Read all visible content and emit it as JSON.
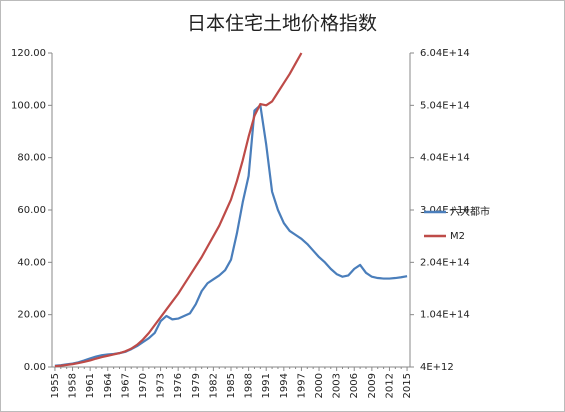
{
  "chart_data": {
    "type": "line",
    "title": "日本住宅土地价格指数",
    "categories": [
      "1955",
      null,
      null,
      "1958",
      null,
      null,
      "1961",
      null,
      null,
      "1964",
      null,
      null,
      "1967",
      null,
      null,
      "1970",
      null,
      null,
      "1973",
      null,
      null,
      "1976",
      null,
      null,
      "1979",
      null,
      null,
      "1982",
      null,
      null,
      "1985",
      null,
      null,
      "1988",
      null,
      null,
      "1991",
      null,
      null,
      "1994",
      null,
      null,
      "1997",
      null,
      null,
      "2000",
      null,
      null,
      "2003",
      null,
      null,
      "2006",
      null,
      null,
      "2009",
      null,
      null,
      "2012",
      null,
      null,
      "2015"
    ],
    "series": [
      {
        "name": "六大都市",
        "color": "#4a7ebb",
        "values": [
          0.5,
          0.7,
          1.0,
          1.3,
          1.8,
          2.5,
          3.3,
          4.0,
          4.5,
          4.8,
          5.0,
          5.3,
          5.8,
          6.8,
          8.0,
          9.5,
          11,
          13,
          17.5,
          19.5,
          18.2,
          18.5,
          19.5,
          20.5,
          24,
          29,
          32,
          33.5,
          35,
          37,
          41,
          51,
          63,
          73,
          98,
          100,
          85,
          67,
          60,
          55,
          52,
          50.5,
          49,
          47,
          44.5,
          42,
          40,
          37.5,
          35.5,
          34.5,
          35,
          37.5,
          39,
          36,
          34.5,
          34,
          33.8,
          33.8,
          34,
          34.3,
          34.7
        ]
      },
      {
        "name": "M2",
        "color": "#be4b48",
        "axis": "y2",
        "values": [
          5500000000000.0,
          6500000000000.0,
          8000000000000.0,
          9500000000000.0,
          11500000000000.0,
          14000000000000.0,
          16500000000000.0,
          20000000000000.0,
          23000000000000.0,
          25500000000000.0,
          28000000000000.0,
          30500000000000.0,
          34000000000000.0,
          39000000000000.0,
          46500000000000.0,
          56500000000000.0,
          69000000000000.0,
          84000000000000.0,
          99000000000000.0,
          114000000000000.0,
          129000000000000.0,
          144000000000000.0,
          161500000000000.0,
          179000000000000.0,
          196500000000000.0,
          214000000000000.0,
          234000000000000.0,
          254000000000000.0,
          274000000000000.0,
          299000000000000.0,
          324000000000000.0,
          359000000000000.0,
          399000000000000.0,
          444000000000000.0,
          484000000000000.0,
          506500000000000.0,
          504000000000000.0,
          511500000000000.0,
          529000000000000.0,
          546500000000000.0,
          564000000000000.0,
          584000000000000.0,
          604000000000000.0,
          null,
          null,
          null,
          null,
          null,
          null,
          null,
          null,
          null,
          null,
          null,
          null,
          null,
          null,
          null,
          null,
          null,
          null
        ]
      }
    ],
    "ylim": [
      0,
      120
    ],
    "yticks": [
      {
        "value": 0,
        "label": "0.00"
      },
      {
        "value": 20,
        "label": "20.00"
      },
      {
        "value": 40,
        "label": "40.00"
      },
      {
        "value": 60,
        "label": "60.00"
      },
      {
        "value": 80,
        "label": "80.00"
      },
      {
        "value": 100,
        "label": "100.00"
      },
      {
        "value": 120,
        "label": "120.00"
      }
    ],
    "y2lim": [
      4000000000000.0,
      604000000000000.0
    ],
    "y2ticks": [
      {
        "value": 4000000000000.0,
        "label": "4E+12"
      },
      {
        "value": 104000000000000.0,
        "label": "1.04E+14"
      },
      {
        "value": 204000000000000.0,
        "label": "2.04E+14"
      },
      {
        "value": 304000000000000.0,
        "label": "3.04E+14"
      },
      {
        "value": 404000000000000.0,
        "label": "4.04E+14"
      },
      {
        "value": 504000000000000.0,
        "label": "5.04E+14"
      },
      {
        "value": 604000000000000.0,
        "label": "6.04E+14"
      }
    ],
    "grid": false,
    "legend": "right"
  }
}
